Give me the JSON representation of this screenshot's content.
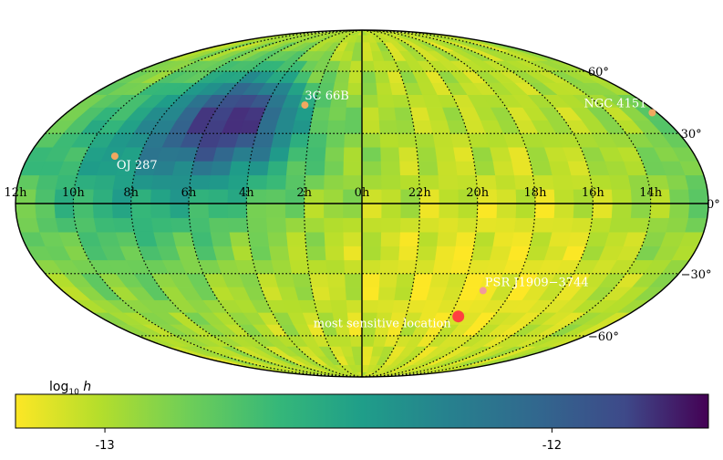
{
  "chart_data": {
    "type": "heatmap",
    "projection": "mollweide",
    "title": "",
    "colormap": "viridis_r",
    "color_range": [
      -13.2,
      -11.65
    ],
    "grid": true,
    "ra_tick_labels": [
      "10h",
      "8h",
      "6h",
      "4h",
      "2h",
      "0h",
      "22h",
      "20h",
      "18h",
      "16h",
      "14h",
      "12h"
    ],
    "dec_tick_labels": [
      "60°",
      "30°",
      "0°",
      "−30°",
      "−60°"
    ],
    "colorbar": {
      "label_prefix": "log",
      "label_sub": "10",
      "label_var": "h",
      "ticks": [
        {
          "value": -13,
          "label": "-13"
        },
        {
          "value": -12,
          "label": "-12"
        }
      ]
    },
    "sources": [
      {
        "name": "3C 66B",
        "ra_hours": 2.4,
        "dec_deg": 43.0,
        "color": "#f0a860"
      },
      {
        "name": "NGC 4151",
        "ra_hours": 12.2,
        "dec_deg": 39.4,
        "color": "#f0a860"
      },
      {
        "name": "OJ 287",
        "ra_hours": 8.9,
        "dec_deg": 20.1,
        "color": "#f0a860"
      },
      {
        "name": "PSR J1909−3744",
        "ra_hours": 19.15,
        "dec_deg": -37.7,
        "color": "#f29a9a"
      },
      {
        "name": "most sensitive location",
        "ra_hours": 19.6,
        "dec_deg": -50.0,
        "color": "#ff4040"
      }
    ]
  }
}
